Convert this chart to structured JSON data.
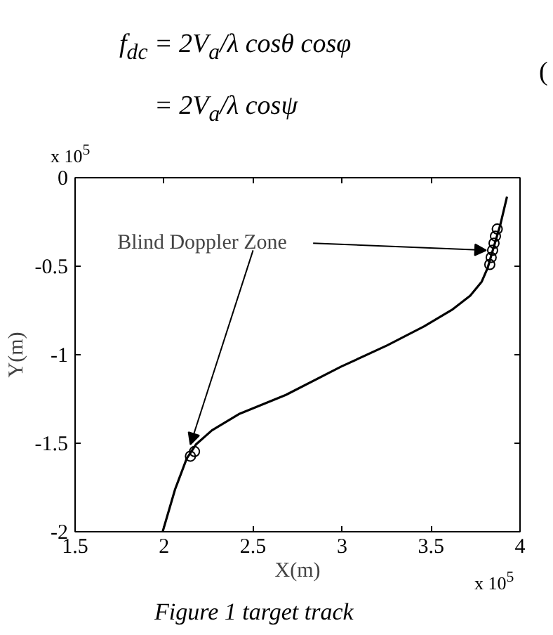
{
  "chart_data": {
    "type": "line",
    "xlabel": "X(m)",
    "ylabel": "Y(m)",
    "xlim": [
      1.5,
      4
    ],
    "ylim": [
      -2,
      0
    ],
    "xticks": [
      1.5,
      2,
      2.5,
      3,
      3.5,
      4
    ],
    "yticks": [
      -2,
      -1.5,
      -1,
      -0.5,
      0
    ],
    "grid": false,
    "series": [
      {
        "color": "#000000",
        "marker": "none",
        "line_style": "solid",
        "x": [
          1.992,
          2.062,
          2.127,
          2.179,
          2.269,
          2.425,
          2.684,
          2.995,
          3.254,
          3.461,
          3.617,
          3.72,
          3.785,
          3.819,
          3.85,
          3.889,
          3.927
        ],
        "values": [
          -2.0,
          -1.76,
          -1.587,
          -1.507,
          -1.427,
          -1.333,
          -1.227,
          -1.067,
          -0.947,
          -0.84,
          -0.747,
          -0.667,
          -0.587,
          -0.507,
          -0.4,
          -0.267,
          -0.107
        ]
      },
      {
        "type": "scatter",
        "color": "#000000",
        "marker": "circle",
        "x": [
          2.148,
          2.171
        ],
        "values": [
          -1.573,
          -1.547
        ]
      },
      {
        "type": "scatter",
        "color": "#000000",
        "marker": "circle",
        "x": [
          3.83,
          3.838,
          3.846,
          3.854,
          3.862,
          3.872
        ],
        "values": [
          -0.49,
          -0.45,
          -0.41,
          -0.37,
          -0.33,
          -0.29
        ]
      }
    ],
    "annotations": [
      "f$_{dc}$ = 2V$_{a}$/λ cosθ cosφ",
      "= 2V$_{a}$/λ cosψ",
      "(",
      "x 10$^{5}$",
      "x 10$^{5}$",
      {
        "text": "Blind Doppler Zone",
        "x": 3.81,
        "y": -0.41
      },
      "Figure 1 target track"
    ]
  }
}
